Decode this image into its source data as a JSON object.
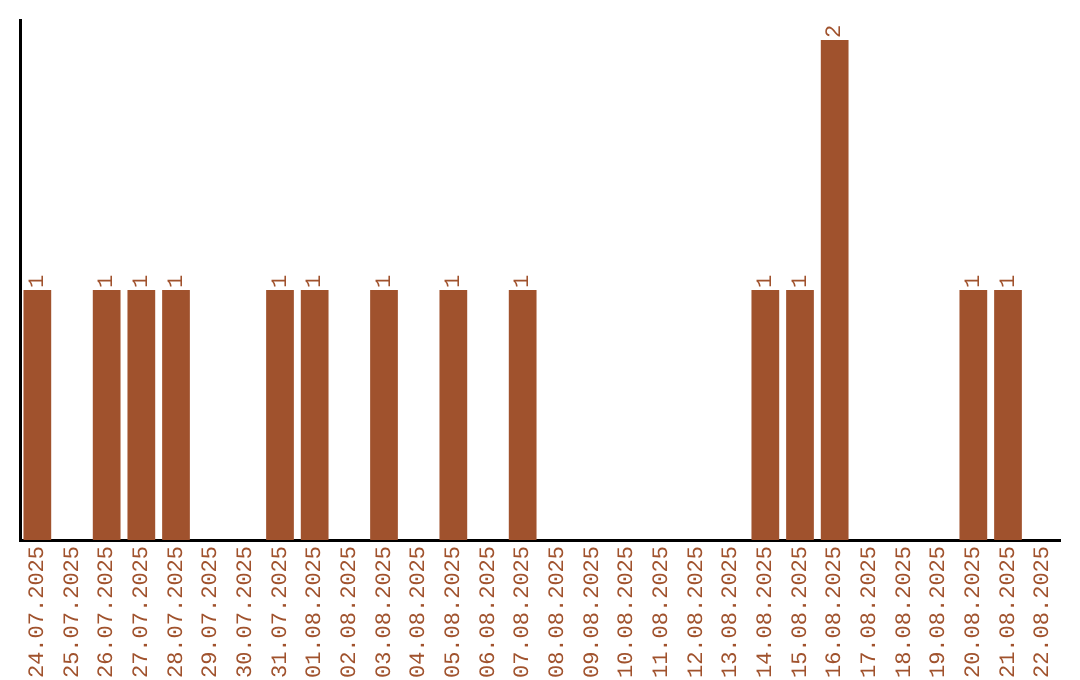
{
  "chart_data": {
    "type": "bar",
    "categories": [
      "24.07.2025",
      "25.07.2025",
      "26.07.2025",
      "27.07.2025",
      "28.07.2025",
      "29.07.2025",
      "30.07.2025",
      "31.07.2025",
      "01.08.2025",
      "02.08.2025",
      "03.08.2025",
      "04.08.2025",
      "05.08.2025",
      "06.08.2025",
      "07.08.2025",
      "08.08.2025",
      "09.08.2025",
      "10.08.2025",
      "11.08.2025",
      "12.08.2025",
      "13.08.2025",
      "14.08.2025",
      "15.08.2025",
      "16.08.2025",
      "17.08.2025",
      "18.08.2025",
      "19.08.2025",
      "20.08.2025",
      "21.08.2025",
      "22.08.2025"
    ],
    "values": [
      1,
      0,
      1,
      1,
      1,
      0,
      0,
      1,
      1,
      0,
      1,
      0,
      1,
      0,
      1,
      0,
      0,
      0,
      0,
      0,
      0,
      1,
      1,
      2,
      0,
      0,
      0,
      1,
      1,
      0
    ],
    "value_labels": [
      "1",
      null,
      "1",
      "1",
      "1",
      null,
      null,
      "1",
      "1",
      null,
      "1",
      null,
      "1",
      null,
      "1",
      null,
      null,
      null,
      null,
      null,
      null,
      "1",
      "1",
      "2",
      null,
      null,
      null,
      "1",
      "1",
      null
    ],
    "color": "#a0522d",
    "ylim": [
      0,
      2.08
    ],
    "tick_labels": "x",
    "grid": false,
    "legend": false
  }
}
